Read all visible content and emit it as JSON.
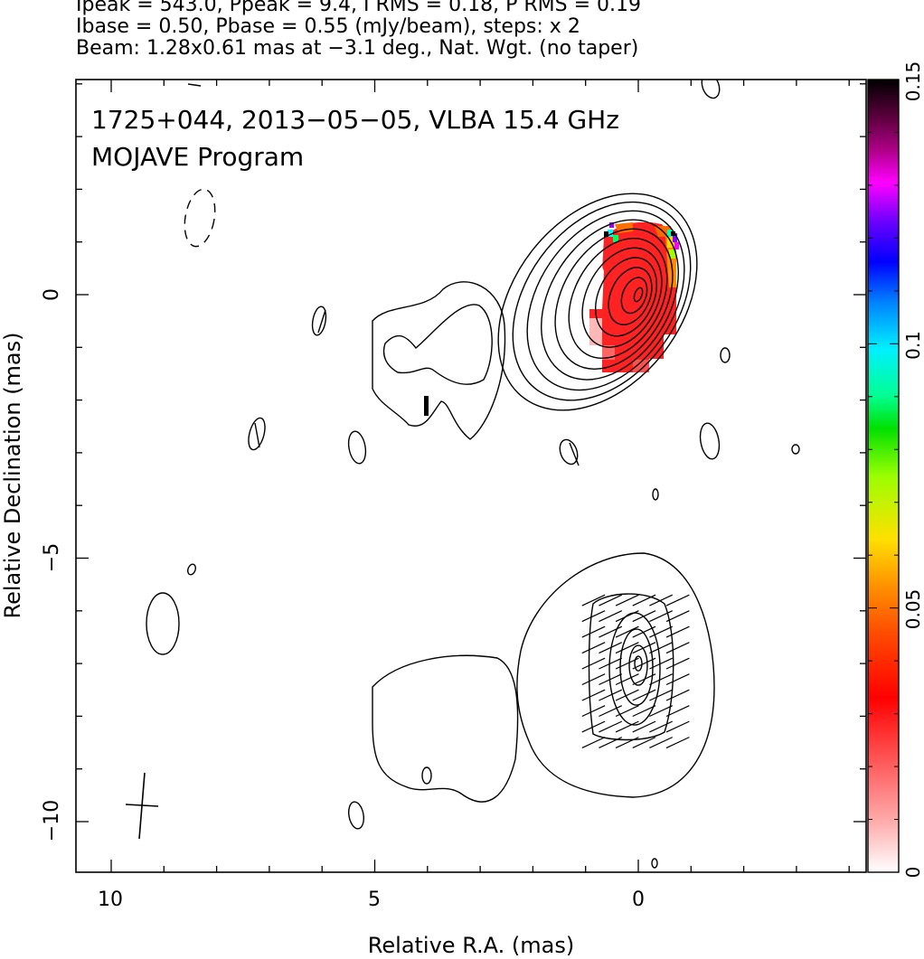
{
  "header": {
    "line1": "Ipeak = 543.0, Ppeak = 9.4, I RMS = 0.18, P RMS = 0.19",
    "line2": "Ibase = 0.50, Pbase = 0.55 (mJy/beam), steps: x 2",
    "line3": "Beam: 1.28x0.61 mas at −3.1 deg., Nat. Wgt. (no taper)"
  },
  "panel": {
    "source_line": "1725+044, 2013−05−05, VLBA 15.4 GHz",
    "program_line": "MOJAVE Program"
  },
  "colorbar": {
    "ticks": [
      {
        "value": 0,
        "label": "0"
      },
      {
        "value": 0.05,
        "label": "0.05"
      },
      {
        "value": 0.1,
        "label": "0.1"
      },
      {
        "value": 0.15,
        "label": "0.15"
      }
    ],
    "range": [
      0,
      0.15
    ]
  },
  "chart_data": {
    "type": "contour",
    "xlabel": "Relative R.A. (mas)",
    "ylabel": "Relative Declination (mas)",
    "xlim": [
      11,
      -4.5
    ],
    "ylim": [
      -11,
      4
    ],
    "xticks": [
      {
        "value": 10,
        "label": "10"
      },
      {
        "value": 5,
        "label": "5"
      },
      {
        "value": 0,
        "label": "0"
      }
    ],
    "yticks": [
      {
        "value": 0,
        "label": "0"
      },
      {
        "value": -5,
        "label": "−5"
      },
      {
        "value": -10,
        "label": "−10"
      }
    ],
    "beam": {
      "major_mas": 1.28,
      "minor_mas": 0.61,
      "pa_deg": -3.1,
      "center": [
        9.4,
        -9.6
      ]
    },
    "stokes_i_contours": {
      "peak_mJy_per_beam": 543.0,
      "base_mJy_per_beam": 0.5,
      "step_factor": 2,
      "core_center": [
        0.0,
        0.0
      ],
      "levels_shown": 11
    },
    "fractional_polarization_image": {
      "colormap": "white-red-yellow-green-cyan-blue-magenta-black",
      "range": [
        0,
        0.15
      ],
      "region": {
        "x_min": -0.65,
        "x_max": 1.0,
        "y_min": -1.4,
        "y_max": 1.35
      },
      "dominant_value": 0.02
    },
    "lower_panel_polarized_intensity_contours": {
      "base_mJy_per_beam": 0.55,
      "center": [
        0.0,
        -7.0
      ]
    },
    "evpa_vectors_region": {
      "x_min": -0.8,
      "x_max": 0.85,
      "y_min": -8.5,
      "y_max": -5.8,
      "angle_deg": 25
    }
  },
  "colors": {
    "contour": "#000000",
    "background": "#ffffff",
    "polarization_main": "#ff2b2b"
  }
}
